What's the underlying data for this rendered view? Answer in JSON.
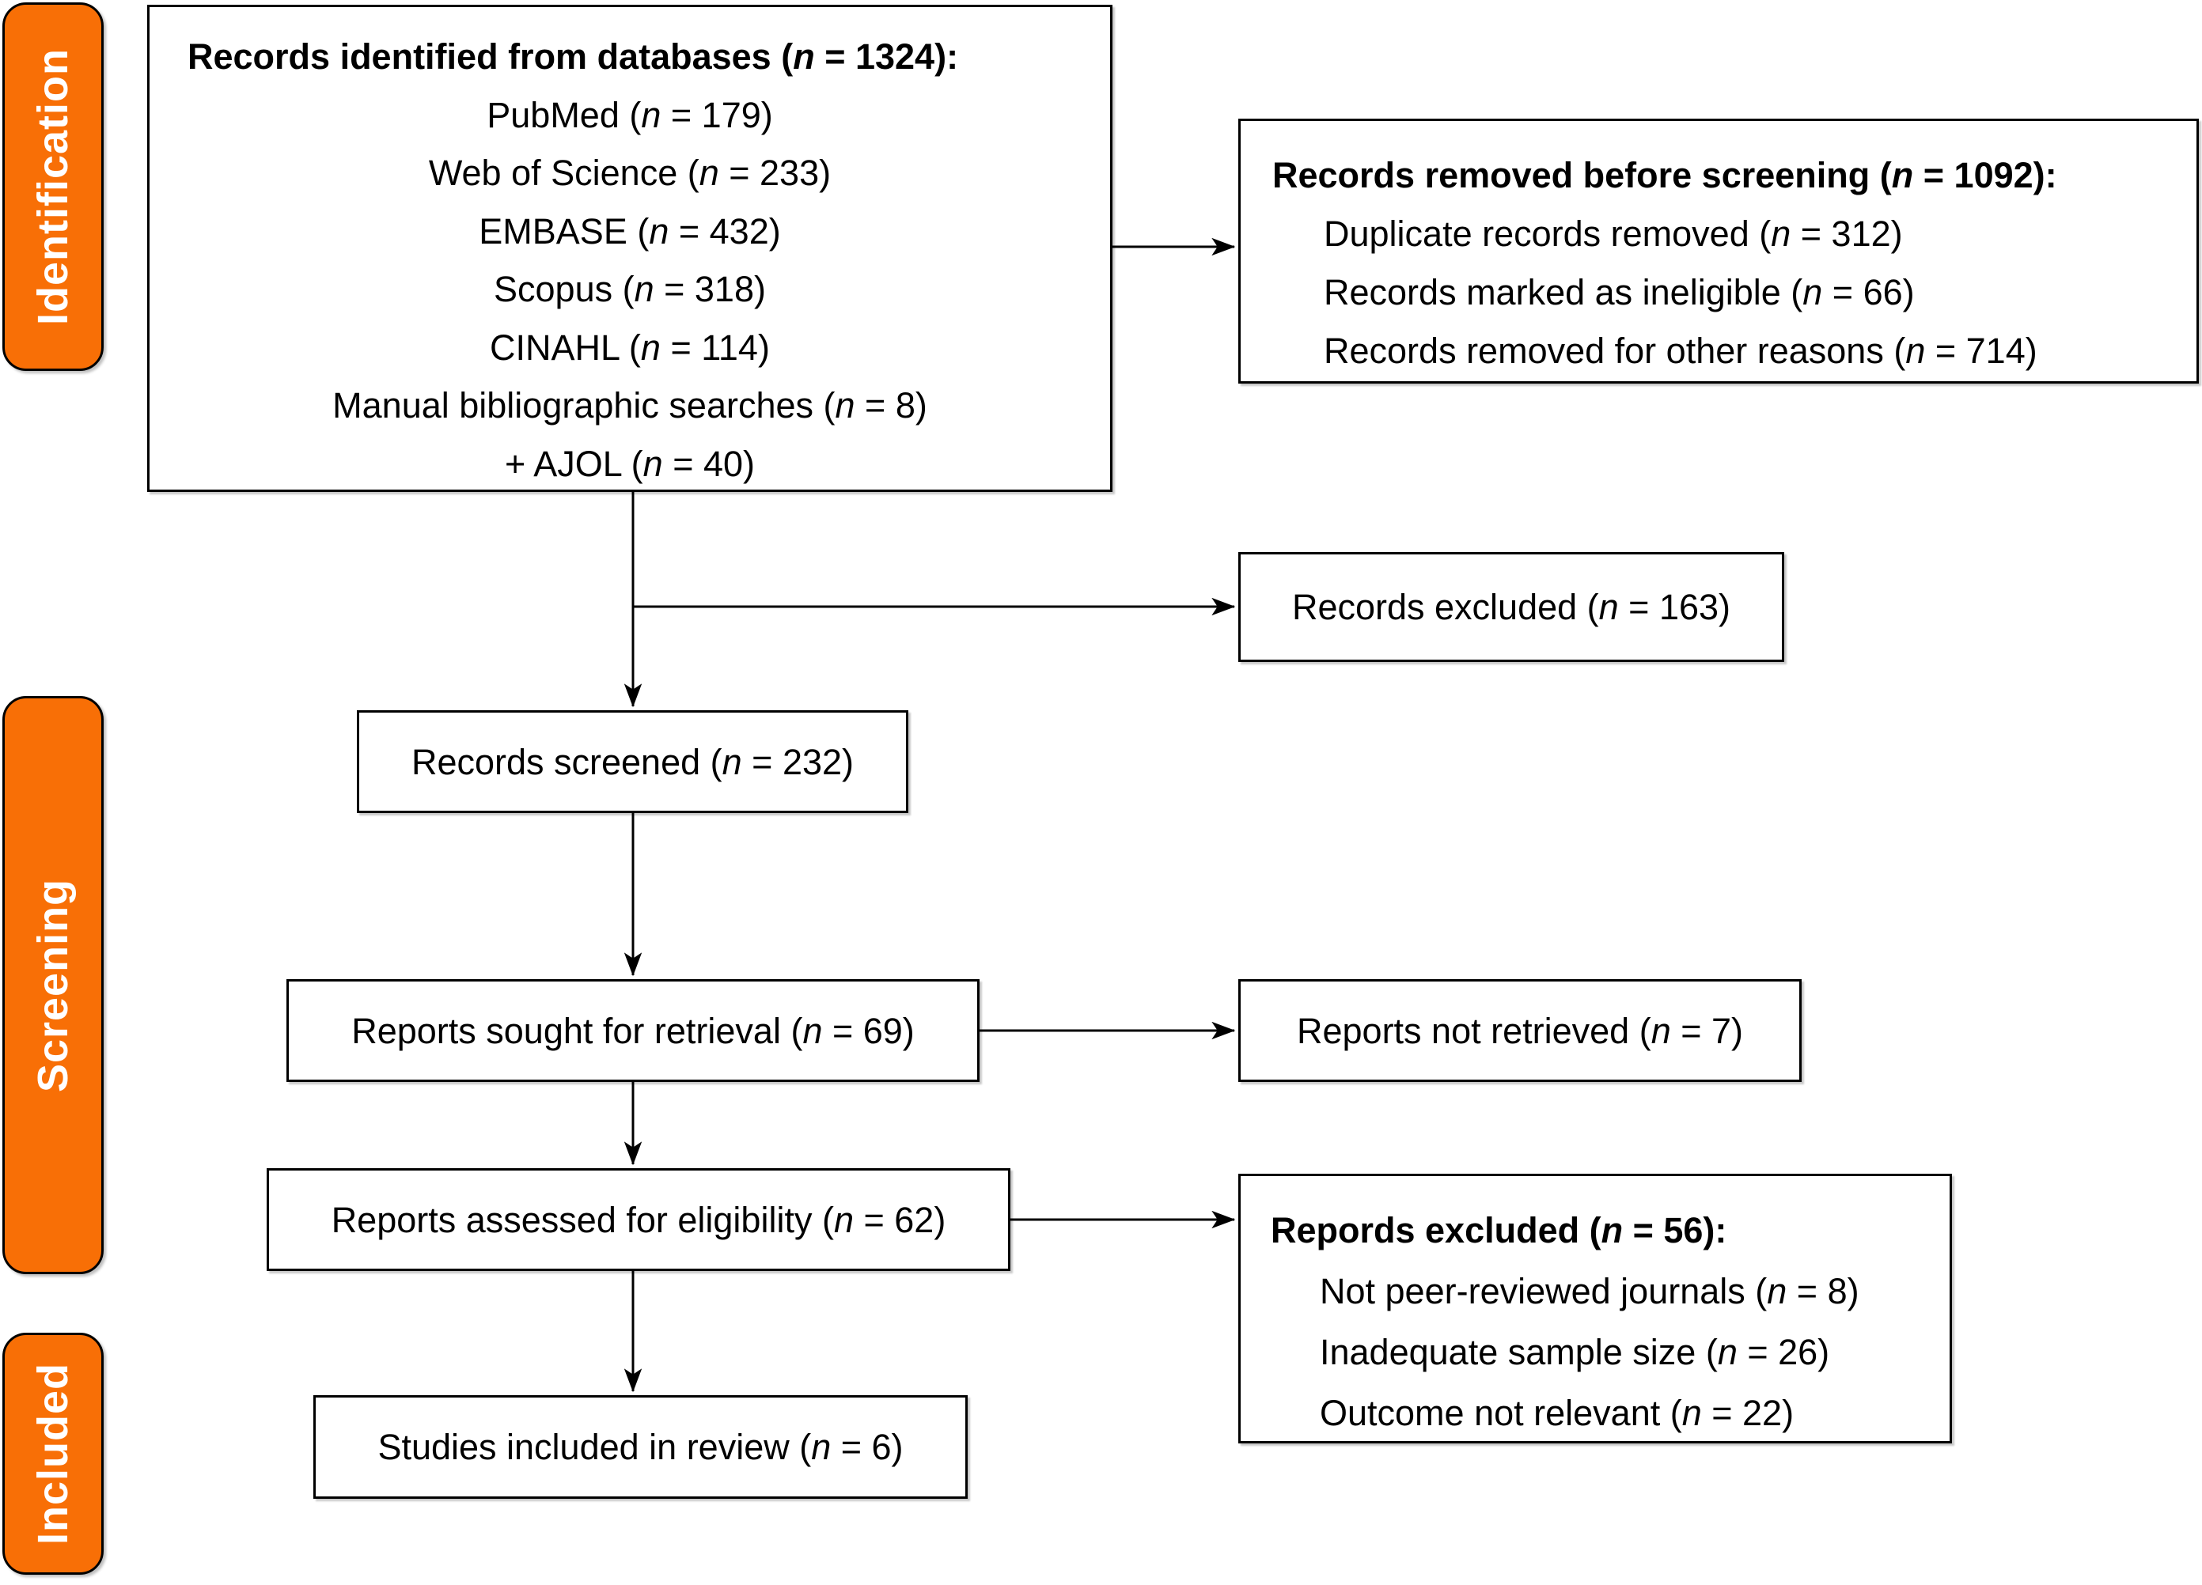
{
  "accent_color": "#F86F06",
  "sidebar": {
    "identification_label": "Identification",
    "screening_label": "Screening",
    "included_label": "Included"
  },
  "boxes": {
    "identified": {
      "title": "Records identified from databases (n = 1324):",
      "items": [
        "PubMed (n = 179)",
        "Web of Science (n = 233)",
        "EMBASE (n = 432)",
        "Scopus (n = 318)",
        "CINAHL (n = 114)",
        "Manual bibliographic searches (n = 8)",
        "+ AJOL (n = 40)"
      ]
    },
    "removed_before_screening": {
      "title": "Records removed before screening (n = 1092):",
      "items": [
        "Duplicate records removed (n = 312)",
        "Records marked as ineligible (n = 66)",
        "Records removed for other reasons (n = 714)"
      ]
    },
    "records_excluded": {
      "label": "Records excluded (n = 163)"
    },
    "records_screened": {
      "label": "Records screened (n = 232)"
    },
    "reports_sought": {
      "label": "Reports sought for retrieval (n = 69)"
    },
    "reports_not_retrieved": {
      "label": "Reports not retrieved (n = 7)"
    },
    "reports_assessed": {
      "label": "Reports assessed for eligibility (n = 62)"
    },
    "reports_excluded": {
      "title": "Repords excluded (n = 56):",
      "items": [
        "Not peer-reviewed journals (n = 8)",
        "Inadequate sample size (n = 26)",
        "Outcome not relevant (n = 22)"
      ]
    },
    "studies_included": {
      "label": "Studies included in review (n = 6)"
    }
  }
}
